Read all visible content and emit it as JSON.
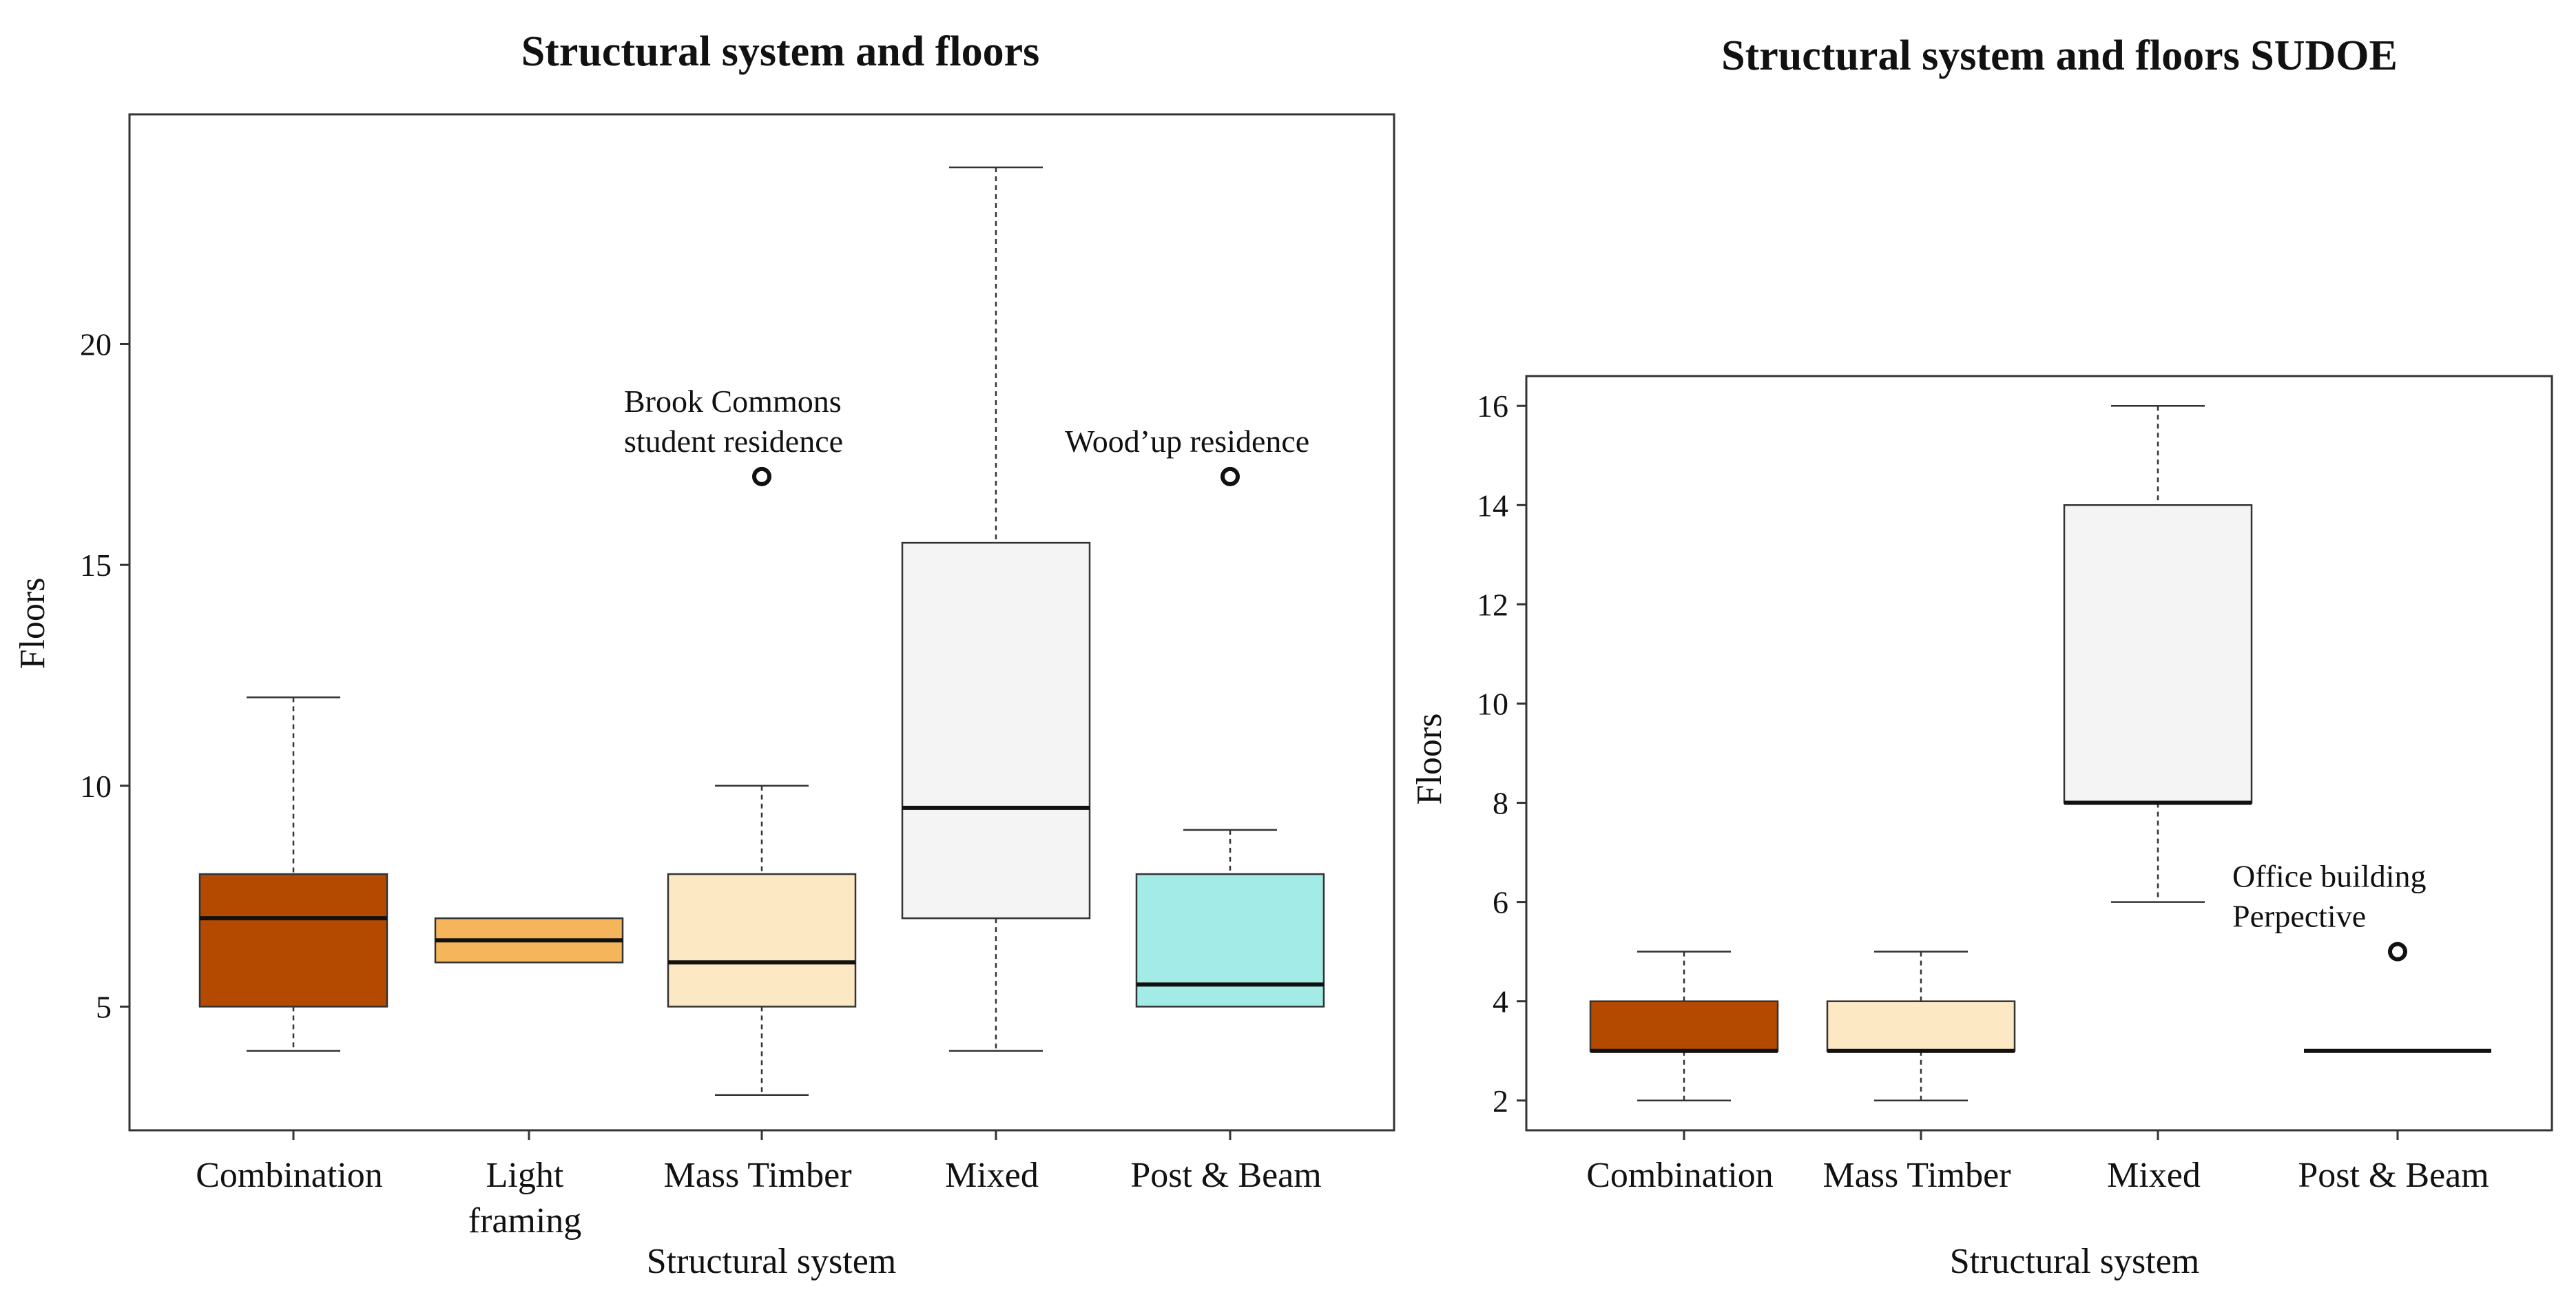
{
  "chart_data": [
    {
      "type": "box",
      "title": "Structural system and floors",
      "xlabel": "Structural system",
      "ylabel": "Floors",
      "ylim": [
        2.2,
        25.2
      ],
      "yticks": [
        "5",
        "10",
        "15",
        "20"
      ],
      "categories": [
        {
          "label_lines": [
            "Combination"
          ],
          "color": "#b34a00",
          "min": 4,
          "q1": 5,
          "median": 7,
          "q3": 8,
          "max": 12
        },
        {
          "label_lines": [
            "Light",
            "framing"
          ],
          "color": "#f5b55b",
          "min": 6,
          "q1": 6,
          "median": 6.5,
          "q3": 7,
          "max": 7
        },
        {
          "label_lines": [
            "Mass Timber"
          ],
          "color": "#fde8c4",
          "min": 3,
          "q1": 5,
          "median": 6,
          "q3": 8,
          "max": 10
        },
        {
          "label_lines": [
            "Mixed"
          ],
          "color": "#f4f4f4",
          "min": 4,
          "q1": 7,
          "median": 9.5,
          "q3": 15.5,
          "max": 24
        },
        {
          "label_lines": [
            "Post & Beam"
          ],
          "color": "#a3ebe7",
          "min": 5,
          "q1": 5,
          "median": 5.5,
          "q3": 8,
          "max": 9
        }
      ],
      "outliers": [
        {
          "category_index": 2,
          "value": 17,
          "label_lines": [
            "Brook Commons",
            "student residence"
          ],
          "label_align": "below-left"
        },
        {
          "category_index": 4,
          "value": 17,
          "label_lines": [
            "Wood’up residence"
          ],
          "label_align": "left"
        }
      ]
    },
    {
      "type": "box",
      "title": "Structural system and floors SUDOE",
      "xlabel": "Structural system",
      "ylabel": "Floors",
      "ylim": [
        1.4,
        16.6
      ],
      "yticks": [
        "2",
        "4",
        "6",
        "8",
        "10",
        "12",
        "14",
        "16"
      ],
      "categories": [
        {
          "label_lines": [
            "Combination"
          ],
          "color": "#b34a00",
          "min": 2,
          "q1": 3,
          "median": 3,
          "q3": 4,
          "max": 5
        },
        {
          "label_lines": [
            "Mass Timber"
          ],
          "color": "#fde8c4",
          "min": 2,
          "q1": 3,
          "median": 3,
          "q3": 4,
          "max": 5
        },
        {
          "label_lines": [
            "Mixed"
          ],
          "color": "#f4f4f4",
          "min": 6,
          "q1": 8,
          "median": 8,
          "q3": 14,
          "max": 16
        },
        {
          "label_lines": [
            "Post & Beam"
          ],
          "color": "#ffffff",
          "min": 3,
          "q1": 3,
          "median": 3,
          "q3": 3,
          "max": 3
        }
      ],
      "outliers": [
        {
          "category_index": 3,
          "value": 5,
          "label_lines": [
            "Office building",
            "Perpective"
          ],
          "label_align": "left"
        }
      ]
    }
  ]
}
